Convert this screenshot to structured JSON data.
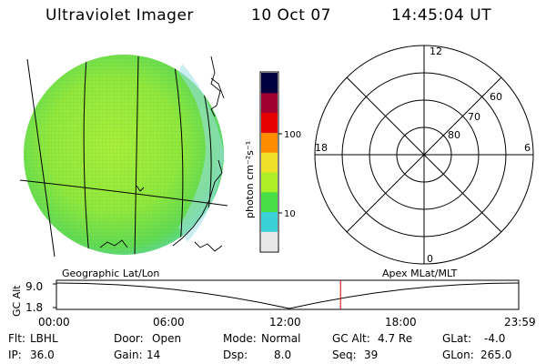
{
  "header": {
    "instrument": "Ultraviolet Imager",
    "date": "10 Oct 07",
    "time": "14:45:04 UT"
  },
  "colorbar": {
    "unit_label": "photon cm⁻²s⁻¹",
    "ticks": [
      "100",
      "10"
    ],
    "tick_values": [
      100,
      10
    ],
    "scale": "log",
    "colors": [
      "#e8e8e8",
      "#3ad0d8",
      "#46e046",
      "#aef028",
      "#f0e028",
      "#ff8c00",
      "#e80000",
      "#a00030",
      "#000040"
    ]
  },
  "polar_plot": {
    "mlt_labels": [
      "12",
      "18",
      "6",
      "0"
    ],
    "mlat_labels": [
      "60",
      "70",
      "80"
    ],
    "mlat_values": [
      60,
      70,
      80
    ]
  },
  "map_labels": {
    "left": "Geographic Lat/Lon",
    "right": "Apex MLat/MLT"
  },
  "altitude_plot": {
    "axis_label": "GC Alt",
    "y_ticks": [
      "9.0",
      "1.8"
    ],
    "x_ticks": [
      "00:00",
      "06:00",
      "12:00",
      "18:00",
      "23:59"
    ],
    "current_time_marker": "14:45",
    "marker_color": "#cc0000"
  },
  "status": {
    "flt_label": "Flt:",
    "flt_value": "LBHL",
    "door_label": "Door:",
    "door_value": "Open",
    "mode_label": "Mode:",
    "mode_value": "Normal",
    "gcalt_label": "GC Alt:",
    "gcalt_value": "4.7 Re",
    "glat_label": "GLat:",
    "glat_value": "-4.0",
    "ip_label": "IP:",
    "ip_value": "36.0",
    "gain_label": "Gain:",
    "gain_value": "14",
    "dsp_label": "Dsp:",
    "dsp_value": "8.0",
    "seq_label": "Seq:",
    "seq_value": "39",
    "glon_label": "GLon:",
    "glon_value": "265.0"
  }
}
